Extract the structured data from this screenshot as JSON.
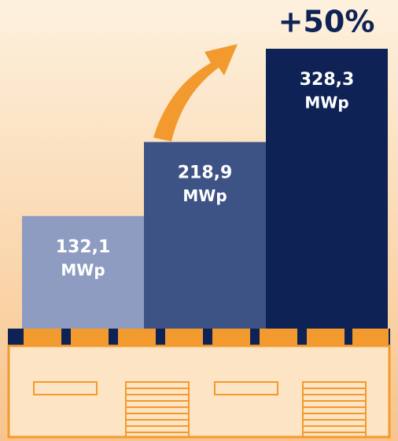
{
  "chart_data": {
    "type": "bar",
    "annotation": "+50%",
    "unit": "MWp",
    "values": [
      132.1,
      218.9,
      328.3
    ],
    "value_labels": [
      "132,1",
      "218,9",
      "328,3"
    ],
    "colors": [
      "#8e9cc2",
      "#3e5385",
      "#0e2256"
    ],
    "label_color": "#ffffff"
  }
}
